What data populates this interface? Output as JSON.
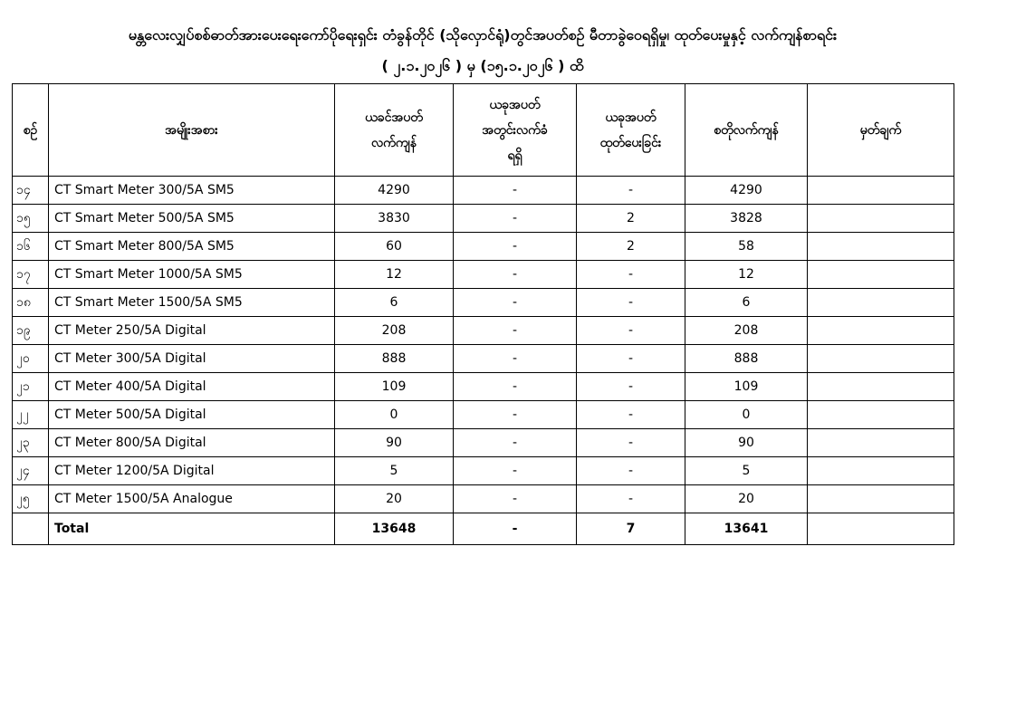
{
  "title": "မန္တလေးလျှပ်စစ်ဓာတ်အားပေးရေးကော်ပိုရေးရှင်း တံခွန်တိုင် (သိုလှောင်ရုံ)တွင်အပတ်စဉ် မီတာခွဲဝေရရှိမှု၊ ထုတ်ပေးမှုနှင့် လက်ကျန်စာရင်း",
  "subtitle": "( ၂.၁.၂၀၂၆ ) မှ (၁၅.၁.၂၀၂၆ ) ထိ",
  "headers": [
    "စဉ်",
    "အမျိုးအစား",
    "ယခင်အပတ်\nလက်ကျန်",
    "ယခုအပတ်\nအတွင်းလက်ခံ\nရရှိ",
    "ယခုအပတ်\nထုတ်ပေးခြင်း",
    "စတိုလက်ကျန်",
    "မှတ်ချက်"
  ],
  "rows": [
    [
      "၁၄",
      "CT Smart Meter 300/5A SM5",
      "4290",
      "-",
      "-",
      "4290",
      ""
    ],
    [
      "၁၅",
      "CT Smart Meter 500/5A SM5",
      "3830",
      "-",
      "2",
      "3828",
      ""
    ],
    [
      "၁၆",
      "CT Smart Meter 800/5A SM5",
      "60",
      "-",
      "2",
      "58",
      ""
    ],
    [
      "၁၇",
      "CT Smart Meter 1000/5A SM5",
      "12",
      "-",
      "-",
      "12",
      ""
    ],
    [
      "၁၈",
      "CT Smart Meter 1500/5A SM5",
      "6",
      "-",
      "-",
      "6",
      ""
    ],
    [
      "၁၉",
      "CT Meter 250/5A Digital",
      "208",
      "-",
      "-",
      "208",
      ""
    ],
    [
      "၂၀",
      "CT Meter 300/5A Digital",
      "888",
      "-",
      "-",
      "888",
      ""
    ],
    [
      "၂၁",
      "CT Meter 400/5A Digital",
      "109",
      "-",
      "-",
      "109",
      ""
    ],
    [
      "၂၂",
      "CT Meter 500/5A Digital",
      "0",
      "-",
      "-",
      "0",
      ""
    ],
    [
      "၂၃",
      "CT Meter 800/5A Digital",
      "90",
      "-",
      "-",
      "90",
      ""
    ],
    [
      "၂၄",
      "CT Meter 1200/5A Digital",
      "5",
      "-",
      "-",
      "5",
      ""
    ],
    [
      "၂၅",
      "CT Meter 1500/5A Analogue",
      "20",
      "-",
      "-",
      "20",
      ""
    ]
  ],
  "total": [
    "",
    "Total",
    "13648",
    "-",
    "7",
    "13641",
    ""
  ]
}
